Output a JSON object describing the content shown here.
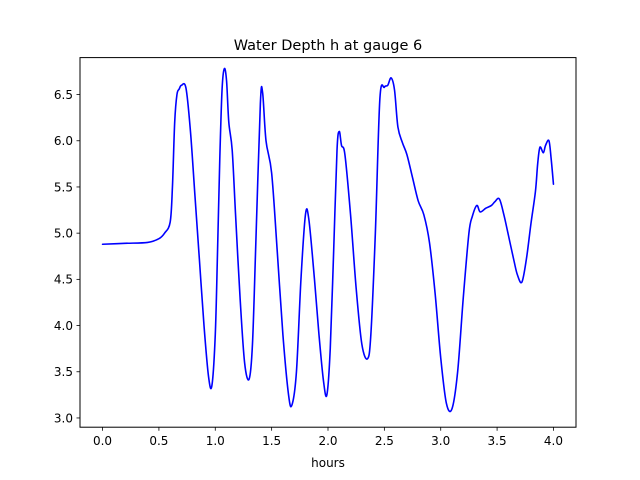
{
  "chart_data": {
    "type": "line",
    "title": "Water Depth h at gauge 6",
    "xlabel": "hours",
    "ylabel": "",
    "xlim": [
      -0.2,
      4.2
    ],
    "ylim": [
      2.9,
      6.9
    ],
    "xticks": [
      0.0,
      0.5,
      1.0,
      1.5,
      2.0,
      2.5,
      3.0,
      3.5,
      4.0
    ],
    "xtick_labels": [
      "0.0",
      "0.5",
      "1.0",
      "1.5",
      "2.0",
      "2.5",
      "3.0",
      "3.5",
      "4.0"
    ],
    "yticks": [
      3.0,
      3.5,
      4.0,
      4.5,
      5.0,
      5.5,
      6.0,
      6.5
    ],
    "ytick_labels": [
      "3.0",
      "3.5",
      "4.0",
      "4.5",
      "5.0",
      "5.5",
      "6.0",
      "6.5"
    ],
    "grid": false,
    "legend": "none",
    "series": [
      {
        "color": "#0000ff",
        "x": [
          0.0,
          0.2,
          0.4,
          0.5,
          0.55,
          0.6,
          0.62,
          0.64,
          0.66,
          0.68,
          0.7,
          0.74,
          0.78,
          0.82,
          0.86,
          0.9,
          0.94,
          0.97,
          1.0,
          1.02,
          1.04,
          1.06,
          1.08,
          1.1,
          1.12,
          1.15,
          1.18,
          1.22,
          1.26,
          1.3,
          1.33,
          1.36,
          1.4,
          1.42,
          1.45,
          1.5,
          1.55,
          1.6,
          1.65,
          1.68,
          1.72,
          1.76,
          1.8,
          1.83,
          1.88,
          1.92,
          1.96,
          1.99,
          2.02,
          2.05,
          2.08,
          2.1,
          2.12,
          2.15,
          2.2,
          2.25,
          2.3,
          2.35,
          2.38,
          2.42,
          2.46,
          2.5,
          2.53,
          2.56,
          2.59,
          2.62,
          2.66,
          2.7,
          2.75,
          2.8,
          2.85,
          2.9,
          2.95,
          3.0,
          3.05,
          3.1,
          3.15,
          3.2,
          3.25,
          3.28,
          3.32,
          3.35,
          3.4,
          3.45,
          3.48,
          3.52,
          3.56,
          3.6,
          3.65,
          3.68,
          3.72,
          3.76,
          3.8,
          3.84,
          3.86,
          3.88,
          3.91,
          3.93,
          3.96,
          3.98,
          4.0
        ],
        "y": [
          4.88,
          4.89,
          4.9,
          4.94,
          5.0,
          5.12,
          5.5,
          6.2,
          6.5,
          6.56,
          6.6,
          6.57,
          6.1,
          5.4,
          4.7,
          4.0,
          3.45,
          3.35,
          3.9,
          4.8,
          5.8,
          6.55,
          6.78,
          6.65,
          6.2,
          5.9,
          5.2,
          4.3,
          3.6,
          3.42,
          3.8,
          4.9,
          6.4,
          6.52,
          6.0,
          5.65,
          4.8,
          3.9,
          3.25,
          3.14,
          3.5,
          4.5,
          5.2,
          5.15,
          4.5,
          3.9,
          3.4,
          3.25,
          3.75,
          4.8,
          5.9,
          6.1,
          5.95,
          5.85,
          5.2,
          4.4,
          3.8,
          3.64,
          3.9,
          5.0,
          6.45,
          6.58,
          6.6,
          6.68,
          6.55,
          6.15,
          5.98,
          5.85,
          5.6,
          5.35,
          5.2,
          4.9,
          4.35,
          3.65,
          3.16,
          3.1,
          3.5,
          4.3,
          5.0,
          5.18,
          5.3,
          5.23,
          5.27,
          5.3,
          5.34,
          5.37,
          5.2,
          4.98,
          4.7,
          4.55,
          4.47,
          4.72,
          5.1,
          5.45,
          5.75,
          5.93,
          5.87,
          5.95,
          6.0,
          5.8,
          5.53
        ]
      }
    ]
  }
}
